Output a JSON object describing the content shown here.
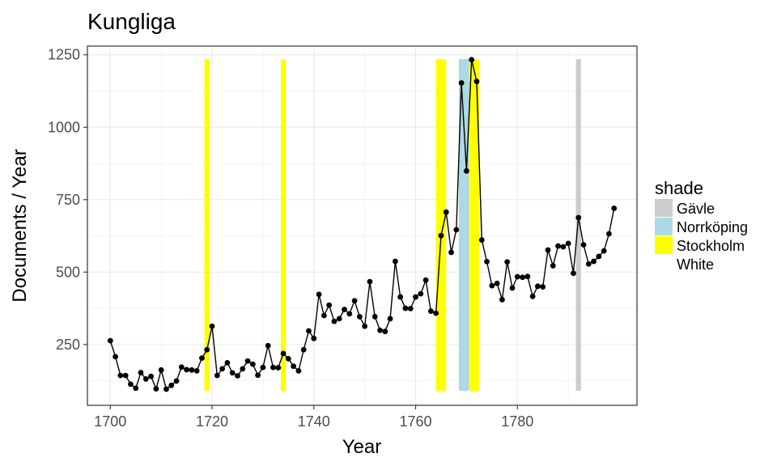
{
  "chart_data": {
    "type": "line",
    "title": "Kungliga",
    "xlabel": "Year",
    "ylabel": "Documents / Year",
    "xlim": [
      1695.5,
      1803.5
    ],
    "ylim": [
      40,
      1280
    ],
    "xticks": [
      1700,
      1720,
      1740,
      1760,
      1780
    ],
    "xtick_labels": [
      "1700",
      "1720",
      "1740",
      "1760",
      "1780"
    ],
    "yticks": [
      250,
      500,
      750,
      1000,
      1250
    ],
    "ytick_labels": [
      "250",
      "500",
      "750",
      "1000",
      "1250"
    ],
    "grid": true,
    "legend": {
      "title": "shade",
      "position": "right",
      "entries": [
        {
          "label": "Gävle",
          "color": "#cccccc"
        },
        {
          "label": "Norrköping",
          "color": "#add8e6"
        },
        {
          "label": "Stockholm",
          "color": "#ffff00"
        },
        {
          "label": "White",
          "color": "#ffffff"
        }
      ]
    },
    "shades": [
      {
        "shade": "Stockholm",
        "x": 1719,
        "width": 1,
        "color": "#ffff00"
      },
      {
        "shade": "Stockholm",
        "x": 1734,
        "width": 1,
        "color": "#ffff00"
      },
      {
        "shade": "Stockholm",
        "x": 1765,
        "width": 2,
        "color": "#ffff00"
      },
      {
        "shade": "Norrköping",
        "x": 1769.5,
        "width": 2,
        "color": "#add8e6"
      },
      {
        "shade": "Stockholm",
        "x": 1771.5,
        "width": 2,
        "color": "#ffff00"
      },
      {
        "shade": "Gävle",
        "x": 1792,
        "width": 1,
        "color": "#cccccc"
      }
    ],
    "shade_range": [
      90,
      1235
    ],
    "series": [
      {
        "x": [
          1700,
          1701,
          1702,
          1703,
          1704,
          1705,
          1706,
          1707,
          1708,
          1709,
          1710,
          1711,
          1712,
          1713,
          1714,
          1715,
          1716,
          1717,
          1718,
          1719,
          1720,
          1721,
          1722,
          1723,
          1724,
          1725,
          1726,
          1727,
          1728,
          1729,
          1730,
          1731,
          1732,
          1733,
          1734,
          1735,
          1736,
          1737,
          1738,
          1739,
          1740,
          1741,
          1742,
          1743,
          1744,
          1745,
          1746,
          1747,
          1748,
          1749,
          1750,
          1751,
          1752,
          1753,
          1754,
          1755,
          1756,
          1757,
          1758,
          1759,
          1760,
          1761,
          1762,
          1763,
          1764,
          1765,
          1766,
          1767,
          1768,
          1769,
          1770,
          1771,
          1772,
          1773,
          1774,
          1775,
          1776,
          1777,
          1778,
          1779,
          1780,
          1781,
          1782,
          1783,
          1784,
          1785,
          1786,
          1787,
          1788,
          1789,
          1790,
          1791,
          1792,
          1793,
          1794,
          1795,
          1796,
          1797,
          1798,
          1799
        ],
        "values": [
          263,
          208,
          143,
          143,
          113,
          99,
          153,
          131,
          140,
          97,
          162,
          96,
          109,
          124,
          172,
          163,
          162,
          159,
          203,
          232,
          313,
          143,
          166,
          187,
          152,
          142,
          166,
          193,
          182,
          144,
          171,
          246,
          171,
          170,
          219,
          201,
          175,
          159,
          232,
          297,
          271,
          423,
          350,
          386,
          330,
          339,
          371,
          356,
          401,
          346,
          313,
          467,
          346,
          299,
          295,
          339,
          537,
          414,
          375,
          374,
          414,
          425,
          472,
          365,
          358,
          626,
          707,
          568,
          646,
          1153,
          849,
          1233,
          1158,
          611,
          536,
          453,
          461,
          405,
          535,
          445,
          484,
          482,
          485,
          416,
          451,
          449,
          576,
          522,
          590,
          587,
          599,
          496,
          688,
          594,
          528,
          537,
          554,
          573,
          632,
          720
        ]
      }
    ]
  }
}
